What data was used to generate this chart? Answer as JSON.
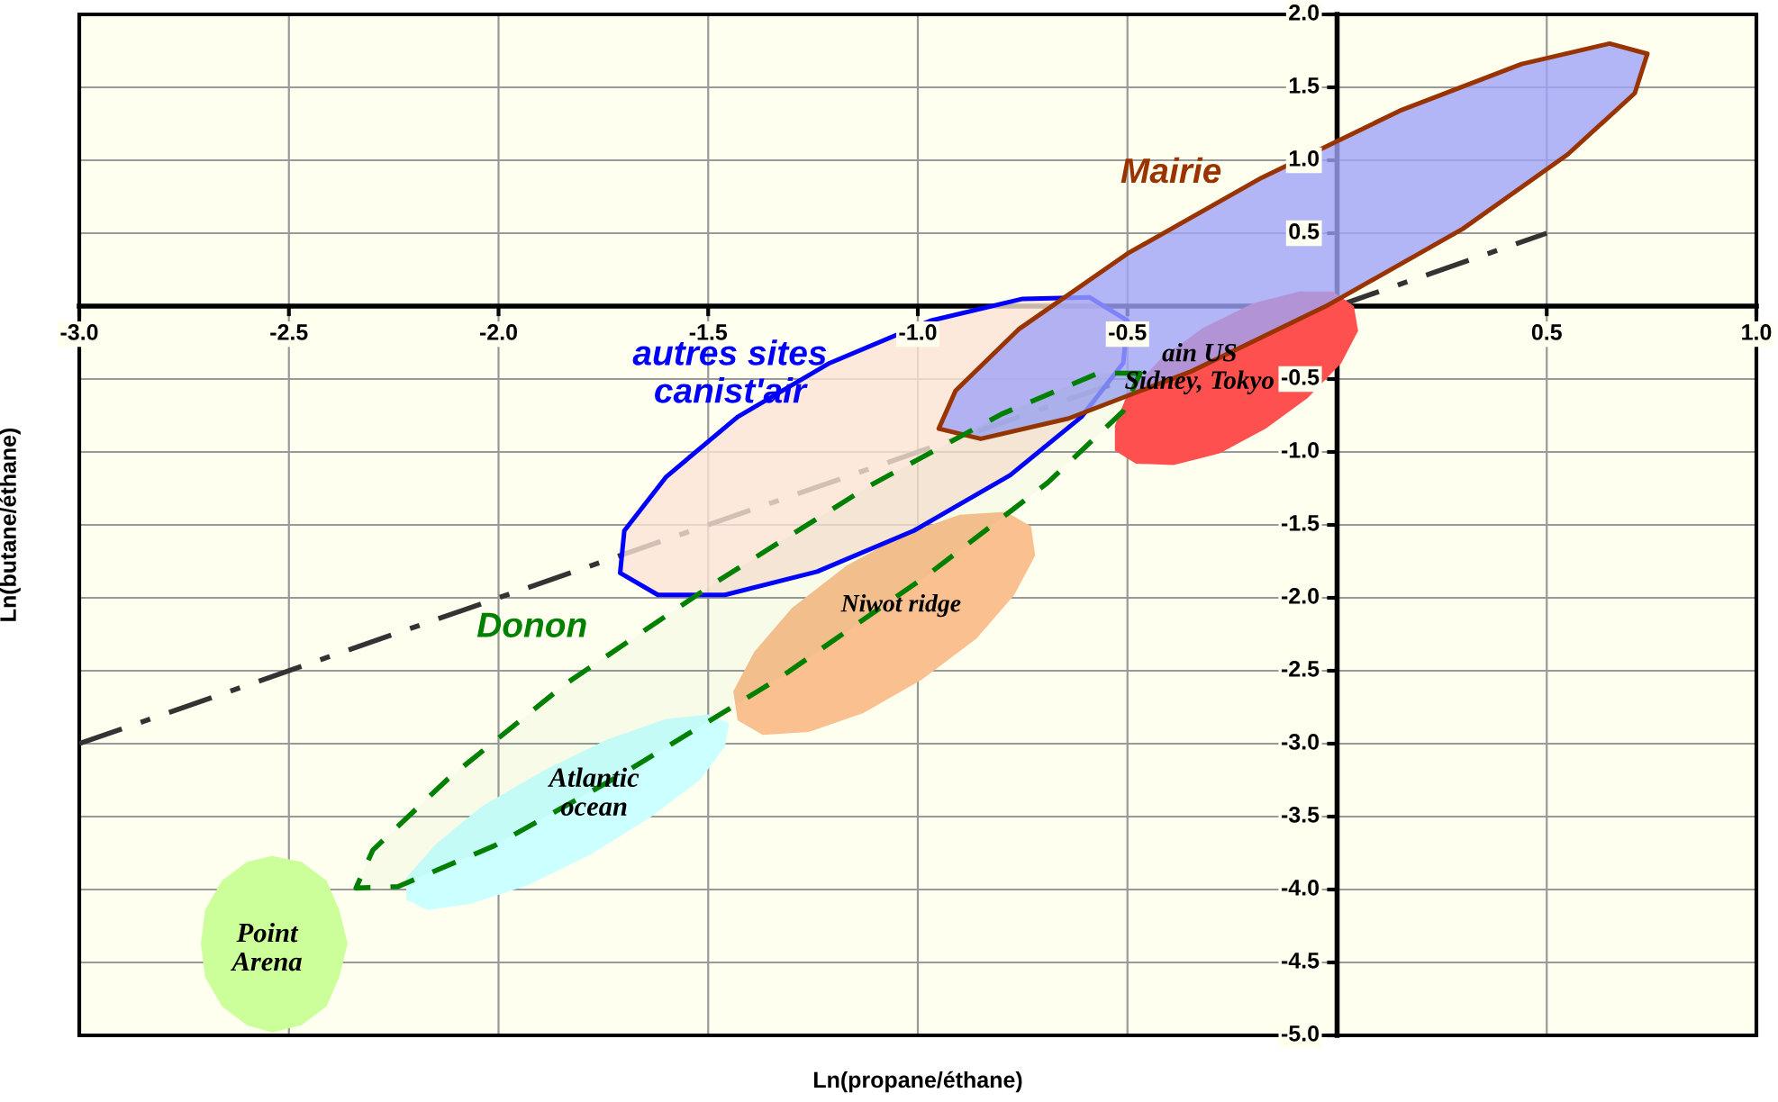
{
  "chart_data": {
    "type": "line",
    "xlabel": "Ln(propane/éthane)",
    "ylabel": "Ln(butane/éthane)",
    "xlim": [
      -3.0,
      1.0
    ],
    "ylim": [
      -5.0,
      2.0
    ],
    "xticks": [
      {
        "value": -3,
        "label": "-3.0"
      },
      -2.5,
      {
        "value": -2,
        "label": "-2.0"
      },
      -1.5,
      {
        "value": -1,
        "label": "-1.0"
      },
      -0.5,
      {
        "value": 0,
        "label": null
      },
      0.5,
      {
        "value": 1,
        "label": "1.0"
      }
    ],
    "yticks": [
      {
        "value": -5,
        "label": "-5.0"
      },
      -4.5,
      {
        "value": -4,
        "label": "-4.0"
      },
      -3.5,
      {
        "value": -3,
        "label": "-3.0"
      },
      -2.5,
      {
        "value": -2,
        "label": "-2.0"
      },
      -1.5,
      {
        "value": -1,
        "label": "-1.0"
      },
      -0.5,
      {
        "value": 0,
        "label": null
      },
      0.5,
      {
        "value": 1,
        "label": "1.0"
      },
      1.5,
      {
        "value": 2,
        "label": "2.0"
      }
    ],
    "grid": true,
    "series": [
      {
        "type": "area",
        "color": "#ccff99",
        "x": [
          -2.36,
          -2.38,
          -2.41,
          -2.47,
          -2.54,
          -2.6,
          -2.66,
          -2.7,
          -2.71,
          -2.7,
          -2.66,
          -2.6,
          -2.54,
          -2.47,
          -2.41,
          -2.38
        ],
        "values": [
          -4.37,
          -4.14,
          -3.94,
          -3.81,
          -3.77,
          -3.81,
          -3.94,
          -4.14,
          -4.37,
          -4.6,
          -4.8,
          -4.93,
          -4.98,
          -4.93,
          -4.8,
          -4.6
        ]
      },
      {
        "type": "area",
        "color": "#ccffff",
        "x": [
          -1.45,
          -1.5,
          -1.6,
          -1.74,
          -1.89,
          -2.04,
          -2.15,
          -2.22,
          -2.22,
          -2.17,
          -2.07,
          -1.93,
          -1.78,
          -1.64,
          -1.52,
          -1.46
        ],
        "values": [
          -2.86,
          -2.8,
          -2.83,
          -2.97,
          -3.18,
          -3.43,
          -3.69,
          -3.92,
          -4.07,
          -4.14,
          -4.1,
          -3.97,
          -3.76,
          -3.51,
          -3.25,
          -3.02
        ]
      },
      {
        "type": "area",
        "color": "#fac090",
        "x": [
          -0.73,
          -0.79,
          -0.9,
          -1.03,
          -1.17,
          -1.3,
          -1.39,
          -1.44,
          -1.43,
          -1.37,
          -1.26,
          -1.13,
          -0.99,
          -0.86,
          -0.77,
          -0.72
        ],
        "values": [
          -1.51,
          -1.41,
          -1.43,
          -1.56,
          -1.78,
          -2.07,
          -2.37,
          -2.64,
          -2.84,
          -2.94,
          -2.92,
          -2.79,
          -2.56,
          -2.28,
          -1.98,
          -1.71
        ]
      },
      {
        "color": "#333333",
        "line_style": "dashdot",
        "x": [
          -3.0,
          0.5
        ],
        "values": [
          -3.0,
          0.5
        ]
      },
      {
        "type": "area",
        "color": "#ff5050",
        "x": [
          0.04,
          -0.01,
          -0.09,
          -0.2,
          -0.32,
          -0.42,
          -0.5,
          -0.53,
          -0.53,
          -0.48,
          -0.39,
          -0.28,
          -0.17,
          -0.07,
          0.01,
          0.05
        ],
        "values": [
          0.0,
          0.1,
          0.1,
          0.02,
          -0.15,
          -0.36,
          -0.6,
          -0.82,
          -0.99,
          -1.08,
          -1.09,
          -1.01,
          -0.84,
          -0.63,
          -0.39,
          -0.17
        ]
      },
      {
        "type": "area",
        "color": "#fbe3d6",
        "x": [
          -0.5,
          -0.59,
          -0.75,
          -0.97,
          -1.21,
          -1.43,
          -1.6,
          -1.7,
          -1.71,
          -1.62,
          -1.46,
          -1.24,
          -1.01,
          -0.78,
          -0.61,
          -0.51
        ],
        "values": [
          -0.1,
          0.06,
          0.05,
          -0.1,
          -0.39,
          -0.76,
          -1.17,
          -1.54,
          -1.83,
          -1.98,
          -1.98,
          -1.82,
          -1.54,
          -1.16,
          -0.76,
          -0.39
        ]
      },
      {
        "type": "area",
        "color": "#9fa4f7",
        "x": [
          0.74,
          0.65,
          0.44,
          0.15,
          -0.18,
          -0.5,
          -0.76,
          -0.91,
          -0.95,
          -0.85,
          -0.64,
          -0.35,
          -0.02,
          0.3,
          0.55,
          0.71
        ],
        "values": [
          1.73,
          1.8,
          1.66,
          1.34,
          0.88,
          0.36,
          -0.16,
          -0.58,
          -0.84,
          -0.91,
          -0.77,
          -0.45,
          0.01,
          0.53,
          1.04,
          1.46
        ]
      },
      {
        "type": "area",
        "color": "#008000",
        "line_style": "dashed",
        "x": [
          -0.47,
          -0.57,
          -0.8,
          -1.12,
          -1.48,
          -1.84,
          -2.12,
          -2.3,
          -2.34,
          -2.24,
          -2.01,
          -1.7,
          -1.33,
          -0.98,
          -0.69,
          -0.51
        ],
        "values": [
          -0.46,
          -0.46,
          -0.74,
          -1.24,
          -1.89,
          -2.59,
          -3.24,
          -3.73,
          -3.99,
          -3.98,
          -3.7,
          -3.2,
          -2.55,
          -1.85,
          -1.21,
          -0.72
        ]
      }
    ],
    "annotations": [
      "Mairie",
      "autres sites\ncanist'air",
      "ain US\nSidney, Tokyo",
      "Niwot ridge",
      "Donon",
      "Atlantic\nocean",
      "Point\nArena"
    ]
  }
}
